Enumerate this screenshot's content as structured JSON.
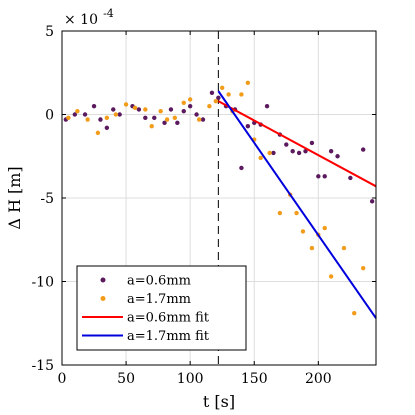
{
  "chart_data": {
    "type": "scatter",
    "xlabel": "t [s]",
    "ylabel": "Δ H [m]",
    "y_multiplier_base": "× 10",
    "y_multiplier_exponent": "-4",
    "xlim": [
      0,
      245
    ],
    "ylim": [
      -15,
      5
    ],
    "x_ticks": [
      0,
      50,
      100,
      150,
      200
    ],
    "x_tick_labels": [
      "0",
      "50",
      "100",
      "150",
      "200"
    ],
    "y_ticks": [
      5,
      0,
      -5,
      -10,
      -15
    ],
    "y_tick_labels": [
      "5",
      "0",
      "-5",
      "-10",
      "-15"
    ],
    "grid": true,
    "legend_position": "bottom-left",
    "vertical_marker_x": 122,
    "colors": {
      "series_06": "#5b1a5e",
      "series_17": "#f39c1a",
      "fit_06": "#ff0000",
      "fit_17": "#0000dd",
      "grid": "#dddddd",
      "marker_line": "#000000"
    },
    "series": [
      {
        "name": "a=0.6mm",
        "kind": "points",
        "points": [
          [
            3,
            -0.3
          ],
          [
            10,
            0.0
          ],
          [
            18,
            0.0
          ],
          [
            25,
            0.5
          ],
          [
            30,
            -0.3
          ],
          [
            35,
            -0.8
          ],
          [
            40,
            0.3
          ],
          [
            45,
            0.0
          ],
          [
            55,
            0.5
          ],
          [
            60,
            0.3
          ],
          [
            65,
            -0.2
          ],
          [
            72,
            -0.2
          ],
          [
            80,
            -0.5
          ],
          [
            85,
            0.3
          ],
          [
            90,
            -0.5
          ],
          [
            95,
            0.2
          ],
          [
            100,
            0.5
          ],
          [
            105,
            0.0
          ],
          [
            110,
            -0.3
          ],
          [
            117,
            1.3
          ],
          [
            122,
            1.0
          ],
          [
            128,
            0.5
          ],
          [
            135,
            0.3
          ],
          [
            140,
            -3.2
          ],
          [
            145,
            -0.7
          ],
          [
            150,
            -0.5
          ],
          [
            155,
            -0.6
          ],
          [
            160,
            0.5
          ],
          [
            165,
            -2.3
          ],
          [
            170,
            -1.2
          ],
          [
            175,
            -1.8
          ],
          [
            180,
            -2.2
          ],
          [
            185,
            -2.3
          ],
          [
            190,
            -2.2
          ],
          [
            195,
            -1.7
          ],
          [
            200,
            -3.7
          ],
          [
            205,
            -3.7
          ],
          [
            210,
            -2.2
          ],
          [
            215,
            -2.5
          ],
          [
            225,
            -3.8
          ],
          [
            235,
            -2.1
          ],
          [
            242,
            -5.2
          ]
        ]
      },
      {
        "name": "a=1.7mm",
        "kind": "points",
        "points": [
          [
            5,
            -0.2
          ],
          [
            12,
            0.2
          ],
          [
            20,
            -0.3
          ],
          [
            28,
            -1.1
          ],
          [
            35,
            -0.2
          ],
          [
            42,
            0.0
          ],
          [
            50,
            0.6
          ],
          [
            57,
            0.4
          ],
          [
            65,
            0.3
          ],
          [
            70,
            -0.7
          ],
          [
            77,
            0.2
          ],
          [
            82,
            -0.3
          ],
          [
            88,
            -0.2
          ],
          [
            95,
            0.7
          ],
          [
            100,
            0.9
          ],
          [
            107,
            -0.3
          ],
          [
            115,
            0.5
          ],
          [
            120,
            0.8
          ],
          [
            125,
            1.6
          ],
          [
            130,
            1.2
          ],
          [
            133,
            0.2
          ],
          [
            140,
            1.2
          ],
          [
            145,
            1.9
          ],
          [
            150,
            -1.5
          ],
          [
            155,
            -2.6
          ],
          [
            162,
            -2.3
          ],
          [
            170,
            -5.9
          ],
          [
            178,
            -4.8
          ],
          [
            183,
            -5.9
          ],
          [
            188,
            -7.0
          ],
          [
            195,
            -8.0
          ],
          [
            200,
            -7.2
          ],
          [
            205,
            -6.8
          ],
          [
            210,
            -9.7
          ],
          [
            220,
            -8.0
          ],
          [
            228,
            -11.9
          ],
          [
            235,
            -9.2
          ]
        ]
      },
      {
        "name": "a=0.6mm fit",
        "kind": "line",
        "points": [
          [
            122,
            0.8
          ],
          [
            245,
            -4.3
          ]
        ]
      },
      {
        "name": "a=1.7mm fit",
        "kind": "line",
        "points": [
          [
            122,
            1.4
          ],
          [
            245,
            -12.2
          ]
        ]
      }
    ]
  }
}
